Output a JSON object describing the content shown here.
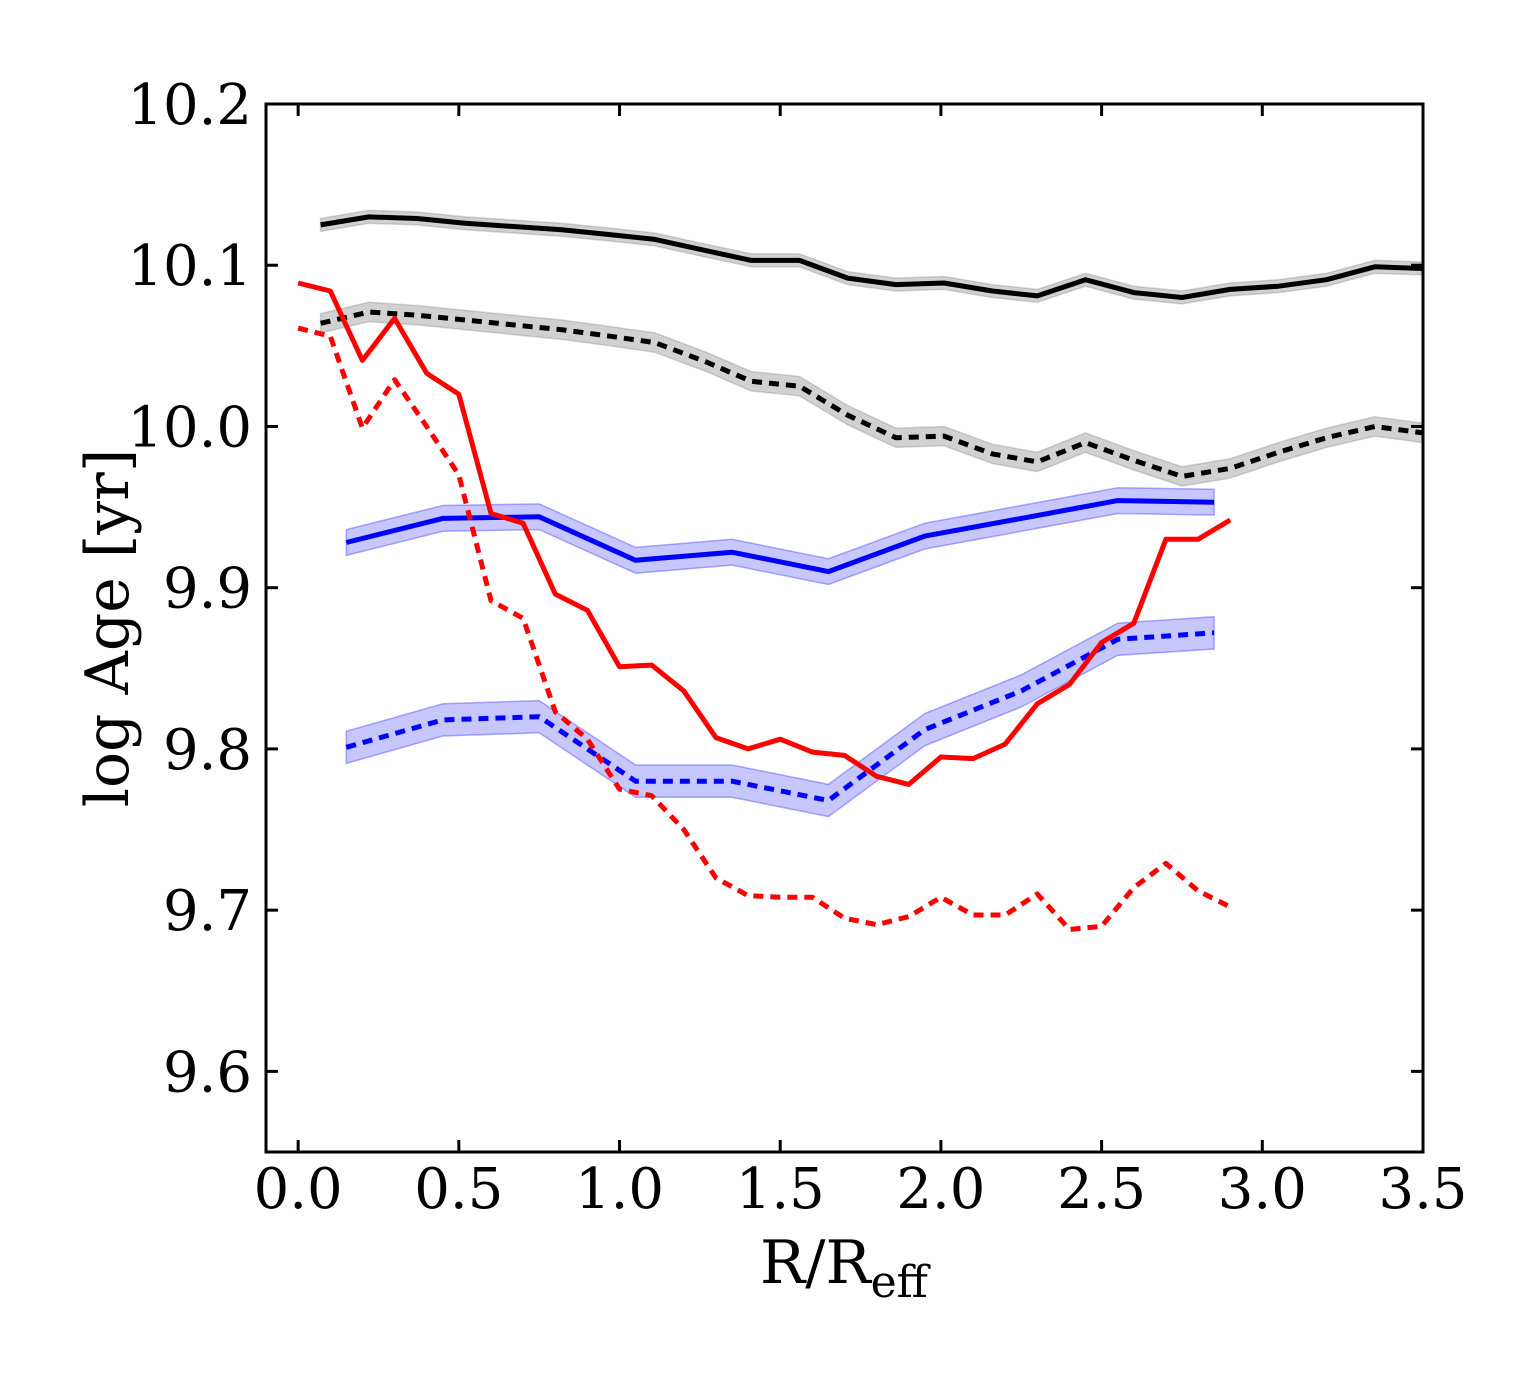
{
  "chart_data": {
    "type": "line",
    "title": "",
    "xlabel": "R/R",
    "xlabel_subscript": "eff",
    "ylabel": "log Age [yr]",
    "xlim": [
      -0.1,
      3.5
    ],
    "ylim": [
      9.55,
      10.2
    ],
    "xticks": [
      0.0,
      0.5,
      1.0,
      1.5,
      2.0,
      2.5,
      3.0,
      3.5
    ],
    "xtick_labels": [
      "0.0",
      "0.5",
      "1.0",
      "1.5",
      "2.0",
      "2.5",
      "3.0",
      "3.5"
    ],
    "yticks": [
      9.6,
      9.7,
      9.8,
      9.9,
      10.0,
      10.1,
      10.2
    ],
    "ytick_labels": [
      "9.6",
      "9.7",
      "9.8",
      "9.9",
      "10.0",
      "10.1",
      "10.2"
    ],
    "grid": false,
    "series": [
      {
        "name": "black-solid",
        "color": "#000000",
        "style": "solid",
        "band": 0.004,
        "x": [
          0.07,
          0.22,
          0.37,
          0.52,
          0.67,
          0.82,
          0.97,
          1.11,
          1.27,
          1.41,
          1.56,
          1.71,
          1.86,
          2.01,
          2.16,
          2.3,
          2.45,
          2.6,
          2.75,
          2.9,
          3.05,
          3.2,
          3.35,
          3.5
        ],
        "y": [
          10.125,
          10.13,
          10.129,
          10.126,
          10.124,
          10.122,
          10.119,
          10.116,
          10.109,
          10.103,
          10.103,
          10.092,
          10.088,
          10.089,
          10.084,
          10.081,
          10.091,
          10.083,
          10.08,
          10.085,
          10.087,
          10.091,
          10.099,
          10.098
        ]
      },
      {
        "name": "black-dotted",
        "color": "#000000",
        "style": "dotted",
        "band": 0.006,
        "x": [
          0.07,
          0.22,
          0.37,
          0.52,
          0.67,
          0.82,
          0.97,
          1.11,
          1.27,
          1.41,
          1.56,
          1.71,
          1.86,
          2.01,
          2.16,
          2.3,
          2.45,
          2.6,
          2.75,
          2.9,
          3.05,
          3.2,
          3.35,
          3.5
        ],
        "y": [
          10.064,
          10.071,
          10.069,
          10.066,
          10.063,
          10.06,
          10.056,
          10.052,
          10.04,
          10.028,
          10.025,
          10.007,
          9.993,
          9.994,
          9.983,
          9.978,
          9.99,
          9.979,
          9.969,
          9.974,
          9.984,
          9.993,
          10.0,
          9.996
        ]
      },
      {
        "name": "blue-solid",
        "color": "#0000ff",
        "style": "solid",
        "band": 0.008,
        "x": [
          0.15,
          0.45,
          0.75,
          1.05,
          1.35,
          1.65,
          1.95,
          2.25,
          2.55,
          2.85
        ],
        "y": [
          9.928,
          9.943,
          9.944,
          9.917,
          9.922,
          9.91,
          9.932,
          9.943,
          9.954,
          9.953
        ]
      },
      {
        "name": "blue-dotted",
        "color": "#0000ff",
        "style": "dotted",
        "band": 0.01,
        "x": [
          0.15,
          0.45,
          0.75,
          1.05,
          1.35,
          1.65,
          1.95,
          2.25,
          2.55,
          2.85
        ],
        "y": [
          9.801,
          9.818,
          9.82,
          9.78,
          9.78,
          9.768,
          9.812,
          9.836,
          9.868,
          9.872
        ]
      },
      {
        "name": "red-solid",
        "color": "#ff0000",
        "style": "solid",
        "band": 0,
        "x": [
          0.0,
          0.1,
          0.2,
          0.3,
          0.4,
          0.5,
          0.6,
          0.7,
          0.8,
          0.9,
          1.0,
          1.1,
          1.2,
          1.3,
          1.4,
          1.5,
          1.6,
          1.7,
          1.8,
          1.9,
          2.0,
          2.1,
          2.2,
          2.3,
          2.4,
          2.5,
          2.6,
          2.7,
          2.8,
          2.9
        ],
        "y": [
          10.089,
          10.084,
          10.041,
          10.067,
          10.033,
          10.02,
          9.946,
          9.94,
          9.896,
          9.886,
          9.851,
          9.852,
          9.836,
          9.807,
          9.8,
          9.806,
          9.798,
          9.796,
          9.783,
          9.778,
          9.795,
          9.794,
          9.803,
          9.828,
          9.84,
          9.866,
          9.878,
          9.93,
          9.93,
          9.942
        ]
      },
      {
        "name": "red-dotted",
        "color": "#ff0000",
        "style": "dotted",
        "band": 0,
        "x": [
          0.0,
          0.1,
          0.2,
          0.3,
          0.4,
          0.5,
          0.6,
          0.7,
          0.8,
          0.9,
          1.0,
          1.1,
          1.2,
          1.3,
          1.4,
          1.5,
          1.6,
          1.7,
          1.8,
          1.9,
          2.0,
          2.1,
          2.2,
          2.3,
          2.4,
          2.5,
          2.6,
          2.7,
          2.8,
          2.9
        ],
        "y": [
          10.061,
          10.056,
          9.999,
          10.029,
          10.0,
          9.97,
          9.892,
          9.881,
          9.823,
          9.806,
          9.775,
          9.771,
          9.75,
          9.72,
          9.709,
          9.708,
          9.708,
          9.695,
          9.691,
          9.696,
          9.708,
          9.697,
          9.697,
          9.71,
          9.688,
          9.69,
          9.714,
          9.729,
          9.712,
          9.702
        ]
      }
    ]
  }
}
